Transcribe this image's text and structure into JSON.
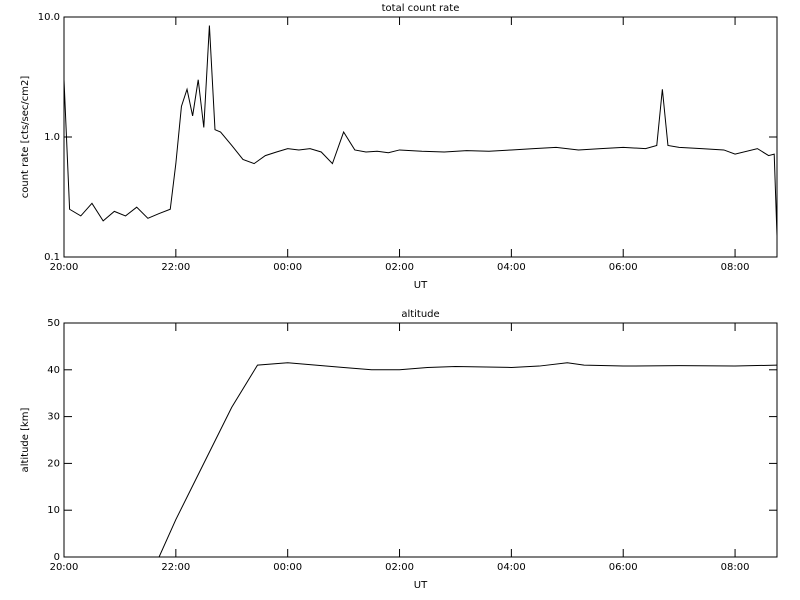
{
  "chart_data": [
    {
      "type": "line",
      "title": "total count rate",
      "x_label": "UT",
      "y_label": "count rate  [cts/sec/cm2]",
      "log_y": true,
      "color": "#000000",
      "xlim": [
        20,
        32.75
      ],
      "xticks": [
        {
          "value": 20,
          "label": "20:00"
        },
        {
          "value": 22,
          "label": "22:00"
        },
        {
          "value": 24,
          "label": "00:00"
        },
        {
          "value": 26,
          "label": "02:00"
        },
        {
          "value": 28,
          "label": "04:00"
        },
        {
          "value": 30,
          "label": "06:00"
        },
        {
          "value": 32,
          "label": "08:00"
        }
      ],
      "ylim": [
        0.1,
        10
      ],
      "yticks": [
        0.1,
        {
          "value": 1,
          "label": "1.0"
        },
        {
          "value": 10,
          "label": "10.0"
        }
      ],
      "x": [
        20.0,
        20.1,
        20.3,
        20.5,
        20.7,
        20.9,
        21.1,
        21.3,
        21.5,
        21.7,
        21.9,
        22.0,
        22.1,
        22.2,
        22.3,
        22.4,
        22.5,
        22.6,
        22.7,
        22.8,
        23.0,
        23.2,
        23.4,
        23.6,
        23.8,
        24.0,
        24.2,
        24.4,
        24.6,
        24.8,
        25.0,
        25.2,
        25.4,
        25.6,
        25.8,
        26.0,
        26.4,
        26.8,
        27.2,
        27.6,
        28.0,
        28.4,
        28.8,
        29.2,
        29.6,
        30.0,
        30.4,
        30.6,
        30.7,
        30.8,
        31.0,
        31.4,
        31.8,
        32.0,
        32.4,
        32.6,
        32.7,
        32.75
      ],
      "values": [
        3.0,
        0.25,
        0.22,
        0.28,
        0.2,
        0.24,
        0.22,
        0.26,
        0.21,
        0.23,
        0.25,
        0.6,
        1.8,
        2.5,
        1.5,
        3.0,
        1.2,
        8.5,
        1.15,
        1.1,
        0.85,
        0.65,
        0.6,
        0.7,
        0.75,
        0.8,
        0.78,
        0.8,
        0.75,
        0.6,
        1.1,
        0.78,
        0.75,
        0.76,
        0.74,
        0.78,
        0.76,
        0.75,
        0.77,
        0.76,
        0.78,
        0.8,
        0.82,
        0.78,
        0.8,
        0.82,
        0.8,
        0.85,
        2.5,
        0.85,
        0.82,
        0.8,
        0.78,
        0.72,
        0.8,
        0.7,
        0.72,
        0.15
      ]
    },
    {
      "type": "line",
      "title": "altitude",
      "x_label": "UT",
      "y_label": "altitude  [km]",
      "log_y": false,
      "color": "#000000",
      "xlim": [
        20,
        32.75
      ],
      "xticks": [
        {
          "value": 20,
          "label": "20:00"
        },
        {
          "value": 22,
          "label": "22:00"
        },
        {
          "value": 24,
          "label": "00:00"
        },
        {
          "value": 26,
          "label": "02:00"
        },
        {
          "value": 28,
          "label": "04:00"
        },
        {
          "value": 30,
          "label": "06:00"
        },
        {
          "value": 32,
          "label": "08:00"
        }
      ],
      "ylim": [
        0,
        50
      ],
      "yticks": [
        0,
        10,
        20,
        30,
        40,
        50
      ],
      "x": [
        20.8,
        21.7,
        22.0,
        22.5,
        23.0,
        23.46,
        24.0,
        24.5,
        25.0,
        25.5,
        26.0,
        26.5,
        27.0,
        28.0,
        28.5,
        29.0,
        29.3,
        30.0,
        31.0,
        32.0,
        32.75
      ],
      "values": [
        0,
        0,
        8,
        20,
        32,
        41,
        41.5,
        41,
        40.5,
        40,
        40,
        40.5,
        40.7,
        40.5,
        40.8,
        41.5,
        41,
        40.8,
        40.9,
        40.8,
        41
      ]
    }
  ]
}
